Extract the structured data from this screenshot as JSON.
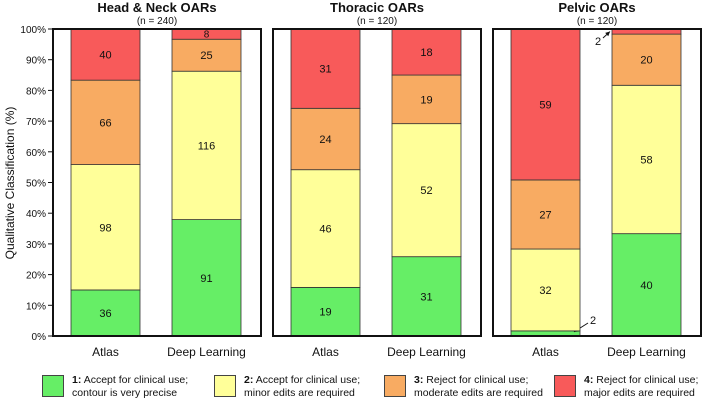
{
  "chart_data": {
    "type": "bar",
    "stacked": "percent",
    "ylabel": "Qualitative Classification (%)",
    "ylim": [
      0,
      100
    ],
    "yticks": [
      "0%",
      "10%",
      "20%",
      "30%",
      "40%",
      "50%",
      "60%",
      "70%",
      "80%",
      "90%",
      "100%"
    ],
    "categories": [
      "Atlas",
      "Deep Learning"
    ],
    "colors": [
      "#66ee66",
      "#ffff99",
      "#f8ab62",
      "#f85a5a"
    ],
    "panels": [
      {
        "title": "Head & Neck OARs",
        "subtitle": "(n = 240)",
        "series": [
          {
            "values": [
              36,
              91
            ]
          },
          {
            "values": [
              98,
              116
            ]
          },
          {
            "values": [
              66,
              25
            ]
          },
          {
            "values": [
              40,
              8
            ]
          }
        ]
      },
      {
        "title": "Thoracic OARs",
        "subtitle": "(n = 120)",
        "series": [
          {
            "values": [
              19,
              31
            ]
          },
          {
            "values": [
              46,
              52
            ]
          },
          {
            "values": [
              24,
              19
            ]
          },
          {
            "values": [
              31,
              18
            ]
          }
        ]
      },
      {
        "title": "Pelvic OARs",
        "subtitle": "(n = 120)",
        "series": [
          {
            "values": [
              2,
              40
            ]
          },
          {
            "values": [
              32,
              58
            ]
          },
          {
            "values": [
              27,
              20
            ]
          },
          {
            "values": [
              59,
              2
            ]
          }
        ]
      }
    ],
    "legend": [
      {
        "num": "1:",
        "line1": "Accept for clinical use;",
        "line2": "contour is very precise"
      },
      {
        "num": "2:",
        "line1": "Accept for clinical use;",
        "line2": "minor edits are required"
      },
      {
        "num": "3:",
        "line1": "Reject for clinical use;",
        "line2": "moderate edits are required"
      },
      {
        "num": "4:",
        "line1": "Reject for clinical use;",
        "line2": "major edits are required"
      }
    ]
  }
}
